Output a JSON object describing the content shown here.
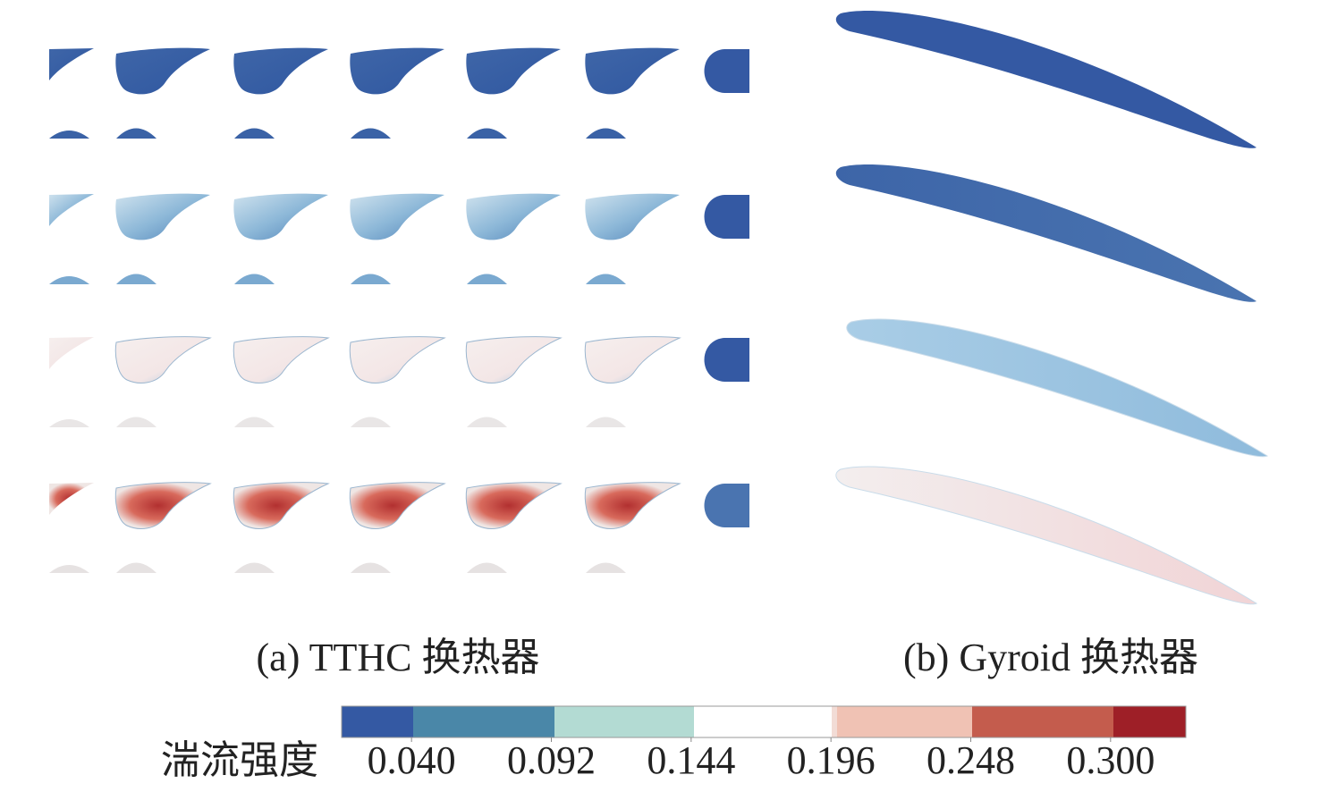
{
  "panels": [
    {
      "caption": "(a) TTHC 换热器"
    },
    {
      "caption": "(b) Gyroid 换热器"
    }
  ],
  "colorbar": {
    "label": "湍流强度",
    "range": [
      0.014,
      0.328
    ],
    "ticks": [
      {
        "value": 0.04,
        "label": "0.040"
      },
      {
        "value": 0.092,
        "label": "0.092"
      },
      {
        "value": 0.144,
        "label": "0.144"
      },
      {
        "value": 0.196,
        "label": "0.196"
      },
      {
        "value": 0.248,
        "label": "0.248"
      },
      {
        "value": 0.3,
        "label": "0.300"
      }
    ]
  }
}
